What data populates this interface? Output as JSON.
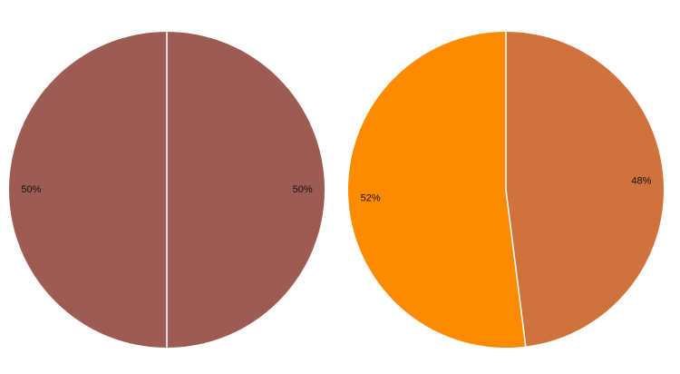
{
  "chart_data": [
    {
      "type": "pie",
      "slices": [
        {
          "label": "50%",
          "value": 50,
          "color": "#9d5b53"
        },
        {
          "label": "50%",
          "value": 50,
          "color": "#9d5b53"
        }
      ]
    },
    {
      "type": "pie",
      "slices": [
        {
          "label": "48%",
          "value": 48,
          "color": "#cf723c"
        },
        {
          "label": "52%",
          "value": 52,
          "color": "#fe8a00"
        }
      ]
    }
  ],
  "colors": {
    "background": "#ffffff",
    "separator": "#ffffff"
  }
}
